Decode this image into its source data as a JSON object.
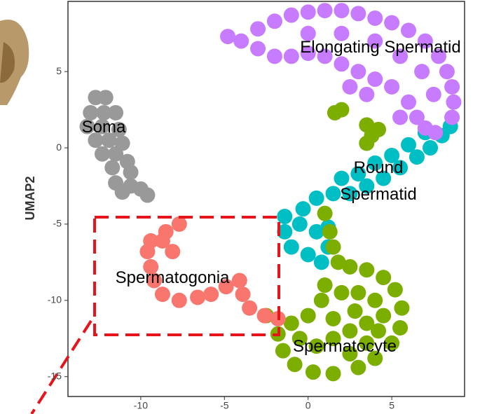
{
  "chart_data": {
    "type": "scatter",
    "y_label": "UMAP2",
    "xlim": [
      -14.35,
      9.35
    ],
    "ylim": [
      -16.3,
      9.6
    ],
    "xticks": [
      -10,
      -5,
      0,
      5
    ],
    "yticks": [
      -15,
      -10,
      -5,
      0,
      5
    ],
    "series": [
      {
        "name": "Soma",
        "color": "#999999",
        "x": [
          -12.7,
          -12.1,
          -13.0,
          -12.2,
          -11.5,
          -13.2,
          -12.3,
          -11.3,
          -12.7,
          -11.9,
          -11.1,
          -12.3,
          -11.5,
          -10.8,
          -11.7,
          -10.6,
          -11.5,
          -10.6,
          -10.0,
          -9.6,
          -11.1
        ],
        "y": [
          3.3,
          3.3,
          2.3,
          2.3,
          2.3,
          1.4,
          1.4,
          1.2,
          0.5,
          0.5,
          0.3,
          -0.4,
          -0.4,
          -0.9,
          -1.3,
          -1.6,
          -2.3,
          -2.5,
          -2.7,
          -3.1,
          -2.9
        ]
      },
      {
        "name": "Round Spermatid",
        "color": "#00bfc4",
        "x": [
          -1.4,
          -1.4,
          -1.0,
          0.0,
          0.8,
          1.2,
          1.2,
          0.5,
          -0.3,
          0.5,
          1.5,
          2.5,
          3.5,
          4.5,
          5.5,
          6.5,
          7.3,
          8.0,
          8.5,
          4.0,
          5.0,
          6.0,
          7.0,
          2.0,
          3.0,
          -0.5
        ],
        "y": [
          -4.5,
          -5.5,
          -6.5,
          -7.0,
          -7.5,
          -6.5,
          -5.2,
          -5.5,
          -4.0,
          -3.3,
          -3.0,
          -3.0,
          -2.5,
          -2.0,
          -1.3,
          -0.6,
          0.0,
          0.8,
          1.4,
          -1.0,
          -0.5,
          0.2,
          1.0,
          -2.0,
          -1.7,
          -5.0
        ]
      },
      {
        "name": "Elongating Spermatid",
        "color": "#c77cff",
        "x": [
          -4.8,
          -4.0,
          -3.0,
          -2.0,
          -1.0,
          0.0,
          1.0,
          2.0,
          3.0,
          4.0,
          5.0,
          6.0,
          7.0,
          7.8,
          8.3,
          8.6,
          8.7,
          8.6,
          -3.0,
          -2.0,
          -1.0,
          0.0,
          1.0,
          2.0,
          3.0,
          4.0,
          5.0,
          6.0,
          6.5,
          7.0,
          7.6,
          0.0,
          2.0,
          4.0,
          5.5,
          6.8,
          7.5,
          2.5,
          3.5,
          5.5
        ],
        "y": [
          7.3,
          7.0,
          7.8,
          8.3,
          8.7,
          8.9,
          9.0,
          9.0,
          8.8,
          8.5,
          8.2,
          7.7,
          7.0,
          6.0,
          5.0,
          4.0,
          3.0,
          2.0,
          6.5,
          6.0,
          6.0,
          6.2,
          6.0,
          5.5,
          5.0,
          4.5,
          4.0,
          3.0,
          2.0,
          1.3,
          1.0,
          7.5,
          7.5,
          7.0,
          6.0,
          5.0,
          3.5,
          4.0,
          3.5,
          2.0
        ]
      },
      {
        "name": "Spermatocyte",
        "color": "#7cae00",
        "x": [
          1.0,
          1.3,
          1.5,
          1.8,
          2.5,
          3.5,
          4.5,
          5.2,
          5.6,
          5.5,
          5.0,
          4.0,
          3.0,
          1.5,
          0.3,
          -0.8,
          -1.5,
          -1.8,
          -1.0,
          0.0,
          0.8,
          1.0,
          2.0,
          3.0,
          4.0,
          4.5,
          3.5,
          2.5,
          1.5,
          0.5,
          2.5,
          3.5,
          4.2,
          1.5,
          2.8,
          -2.5,
          -0.5,
          1.6,
          2.0,
          3.5,
          3.8,
          4.2,
          3.5
        ],
        "y": [
          -4.3,
          -5.5,
          -6.5,
          -7.5,
          -7.8,
          -8.0,
          -8.5,
          -9.3,
          -10.5,
          -11.8,
          -12.8,
          -13.8,
          -14.4,
          -14.8,
          -14.7,
          -14.2,
          -13.3,
          -12.2,
          -11.5,
          -11.0,
          -10.0,
          -9.0,
          -9.5,
          -9.5,
          -10.0,
          -11.0,
          -11.5,
          -12.0,
          -12.5,
          -13.0,
          -13.5,
          -12.8,
          -12.0,
          -11.2,
          -10.7,
          -11.0,
          -12.5,
          2.3,
          2.5,
          1.5,
          0.8,
          1.2,
          0.3
        ]
      },
      {
        "name": "Spermatogonia",
        "color": "#f8766d",
        "x": [
          -7.7,
          -8.5,
          -9.4,
          -9.6,
          -9.4,
          -9.2,
          -8.7,
          -7.7,
          -6.6,
          -5.8,
          -4.9,
          -4.1,
          -3.9,
          -3.5,
          -2.6,
          -1.8,
          -8.1,
          -8.7
        ],
        "y": [
          -5.0,
          -5.5,
          -6.1,
          -6.8,
          -7.8,
          -8.7,
          -9.6,
          -10.0,
          -9.8,
          -9.6,
          -9.1,
          -8.7,
          -9.6,
          -10.5,
          -11.0,
          -11.2,
          -6.8,
          -6.1
        ]
      }
    ]
  }
}
